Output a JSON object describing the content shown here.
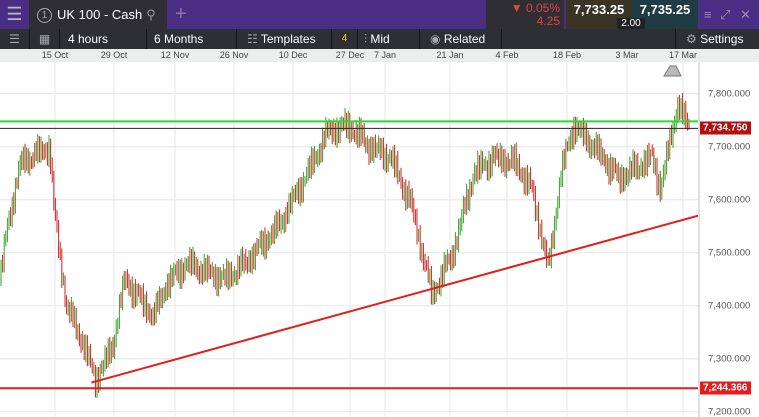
{
  "header": {
    "menu_icon": "hamburger-icon",
    "tab_number": "1",
    "tab_title": "UK 100 - Cash",
    "search_icon": "search-icon",
    "add_tab": "+",
    "change_pct": "▼ 0.05%",
    "change_pts": "4.25",
    "bid": "7,733.25",
    "ask": "7,735.25",
    "spread": "2.00",
    "expand_icon": "expand-icon",
    "close_icon": "close-icon"
  },
  "toolbar": {
    "interval": "4 hours",
    "range": "6 Months",
    "templates": "Templates",
    "indicator_count": "4",
    "price_type": "Mid",
    "related": "Related",
    "settings": "Settings"
  },
  "colors": {
    "up": "#3aa02a",
    "down": "#d42020",
    "support": "#e41c1c",
    "resistance": "#2ed82e",
    "accent": "#4a2e84"
  },
  "chart_data": {
    "type": "candlestick",
    "x_ticks": [
      "15 Oct",
      "29 Oct",
      "12 Nov",
      "26 Nov",
      "10 Dec",
      "27 Dec",
      "7 Jan",
      "21 Jan",
      "4 Feb",
      "18 Feb",
      "3 Mar",
      "17 Mar"
    ],
    "y_ticks": [
      "7,800.000",
      "7,700.000",
      "7,600.000",
      "7,500.000",
      "7,400.000",
      "7,300.000",
      "7,200.000"
    ],
    "ylim": [
      7190,
      7860
    ],
    "xlim": [
      "2018-10-02",
      "2019-03-19"
    ],
    "price_path": [
      [
        "2018-10-02",
        7450
      ],
      [
        "2018-10-04",
        7560
      ],
      [
        "2018-10-07",
        7670
      ],
      [
        "2018-10-14",
        7700
      ],
      [
        "2018-10-15",
        7580
      ],
      [
        "2018-10-18",
        7400
      ],
      [
        "2018-10-22",
        7330
      ],
      [
        "2018-10-25",
        7260
      ],
      [
        "2018-10-29",
        7320
      ],
      [
        "2018-11-01",
        7450
      ],
      [
        "2018-11-08",
        7380
      ],
      [
        "2018-11-11",
        7440
      ],
      [
        "2018-11-16",
        7480
      ],
      [
        "2018-11-25",
        7450
      ],
      [
        "2018-11-30",
        7480
      ],
      [
        "2018-12-08",
        7550
      ],
      [
        "2018-12-15",
        7650
      ],
      [
        "2018-12-20",
        7730
      ],
      [
        "2018-12-25",
        7740
      ],
      [
        "2018-12-30",
        7700
      ],
      [
        "2019-01-04",
        7680
      ],
      [
        "2019-01-09",
        7590
      ],
      [
        "2019-01-14",
        7420
      ],
      [
        "2019-01-19",
        7500
      ],
      [
        "2019-01-24",
        7650
      ],
      [
        "2019-01-29",
        7680
      ],
      [
        "2019-02-03",
        7670
      ],
      [
        "2019-02-07",
        7620
      ],
      [
        "2019-02-11",
        7470
      ],
      [
        "2019-02-14",
        7650
      ],
      [
        "2019-02-17",
        7740
      ],
      [
        "2019-02-22",
        7700
      ],
      [
        "2019-02-28",
        7640
      ],
      [
        "2019-03-08",
        7680
      ],
      [
        "2019-03-10",
        7620
      ],
      [
        "2019-03-14",
        7780
      ],
      [
        "2019-03-17",
        7735
      ]
    ],
    "current_price": 7734.75,
    "current_price_label": "7,734.750",
    "resistance_level": 7748,
    "support_level": 7244.366,
    "support_label": "7,244.366",
    "trendline": [
      [
        "2018-10-24",
        7255
      ],
      [
        "2019-03-19",
        7570
      ]
    ]
  }
}
